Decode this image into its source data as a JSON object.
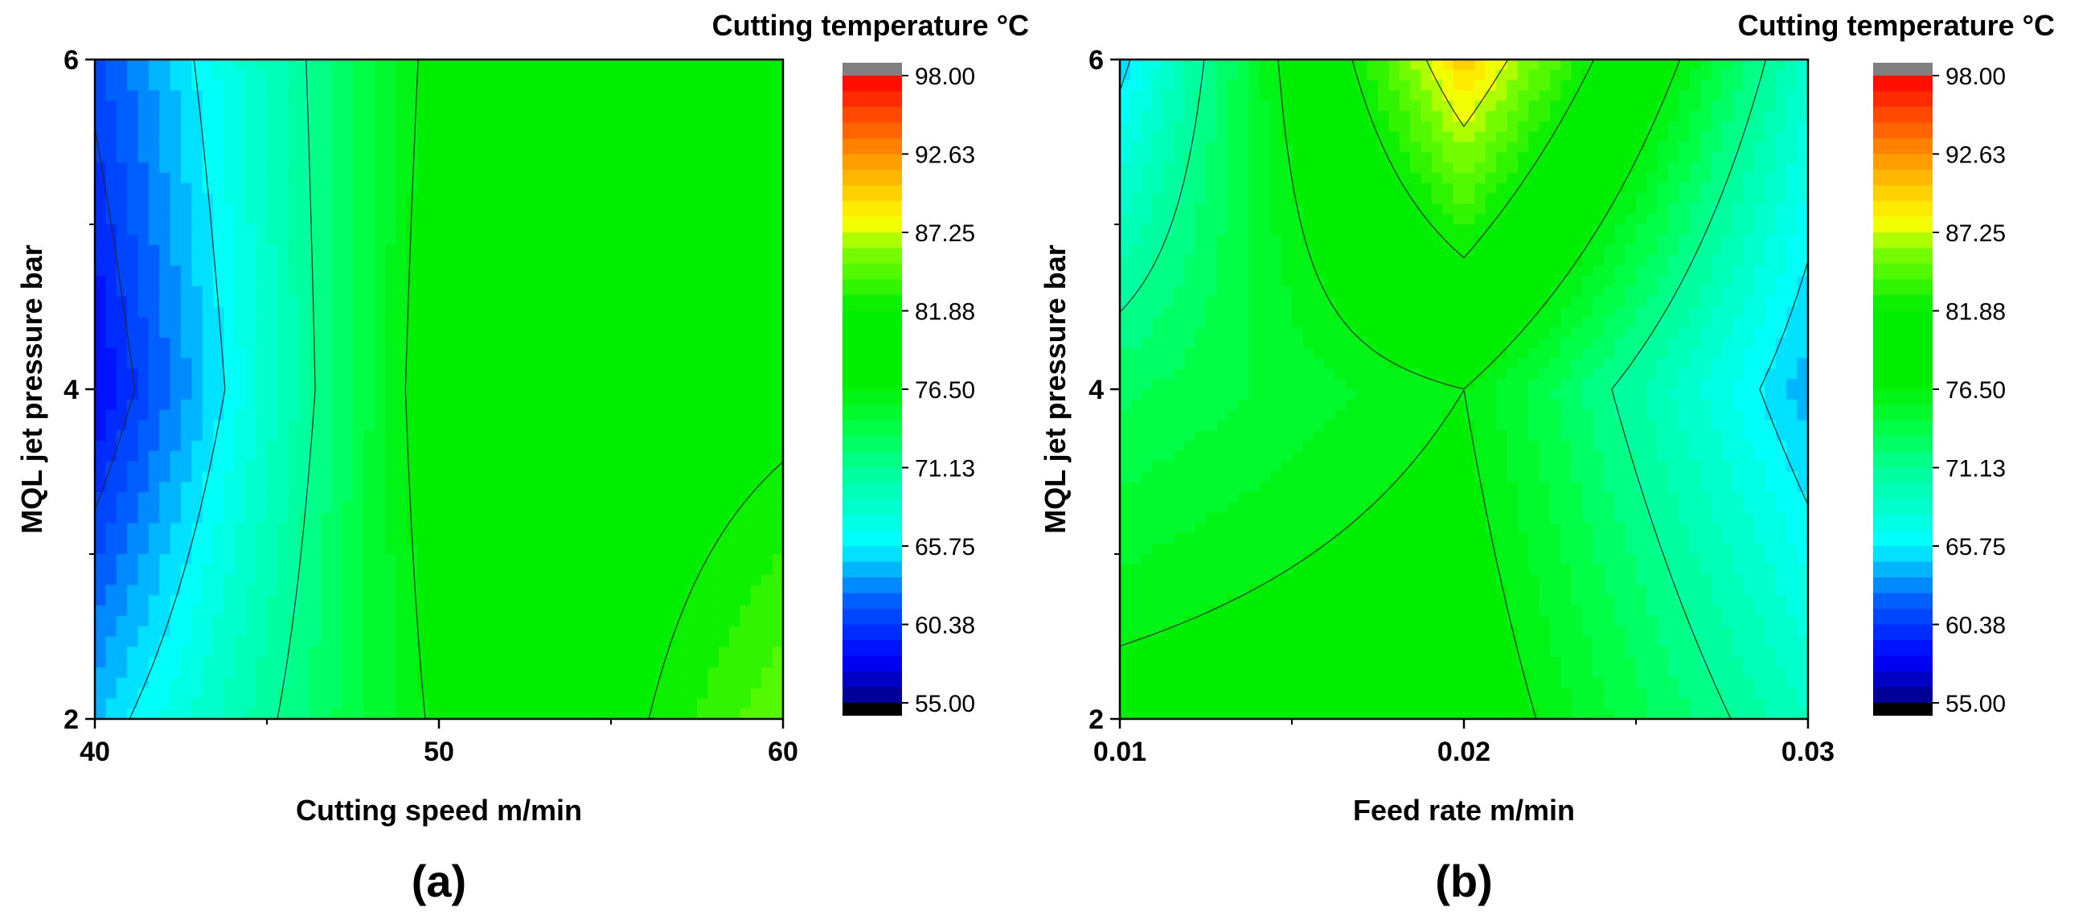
{
  "colors": {
    "stops": [
      [
        55,
        "#000080"
      ],
      [
        58,
        "#0000ff"
      ],
      [
        62,
        "#0060ff"
      ],
      [
        66,
        "#00ffff"
      ],
      [
        71,
        "#00ff99"
      ],
      [
        74,
        "#00ff40"
      ],
      [
        77,
        "#00ee00"
      ],
      [
        82,
        "#00ee00"
      ],
      [
        86,
        "#80ff00"
      ],
      [
        88,
        "#ffff00"
      ],
      [
        92,
        "#ffa000"
      ],
      [
        98,
        "#ff0000"
      ]
    ],
    "contour_line": "#2a2a2a"
  },
  "chart_data": [
    {
      "type": "heatmap",
      "panel_label": "(a)",
      "xlabel": "Cutting speed m/min",
      "ylabel": "MQL jet pressure bar",
      "x_ticks": [
        "40",
        "50",
        "60"
      ],
      "y_ticks": [
        "2",
        "4",
        "6"
      ],
      "xlim": [
        40,
        60
      ],
      "ylim": [
        2,
        6
      ],
      "x": [
        40,
        50,
        60
      ],
      "y": [
        2,
        4,
        6
      ],
      "z_approx": [
        [
          64.5,
          77.0,
          85.0
        ],
        [
          58.0,
          78.5,
          81.0
        ],
        [
          61.0,
          77.5,
          79.0
        ]
      ],
      "colorbar": {
        "title": "Cutting temperature °C",
        "min": 55.0,
        "max": 98.0,
        "ticks": [
          "98.00",
          "92.63",
          "87.25",
          "81.88",
          "76.50",
          "71.13",
          "65.75",
          "60.38",
          "55.00"
        ]
      }
    },
    {
      "type": "heatmap",
      "panel_label": "(b)",
      "xlabel": "Feed rate m/min",
      "ylabel": "MQL jet pressure bar",
      "x_ticks": [
        "0.01",
        "0.02",
        "0.03"
      ],
      "y_ticks": [
        "2",
        "4",
        "6"
      ],
      "xlim": [
        0.01,
        0.03
      ],
      "ylim": [
        2,
        6
      ],
      "x": [
        0.01,
        0.02,
        0.03
      ],
      "y": [
        2,
        4,
        6
      ],
      "z_approx": [
        [
          77.5,
          78.5,
          69.0
        ],
        [
          73.0,
          76.5,
          64.0
        ],
        [
          65.0,
          90.0,
          68.5
        ]
      ],
      "colorbar": {
        "title": "Cutting temperature °C",
        "min": 55.0,
        "max": 98.0,
        "ticks": [
          "98.00",
          "92.63",
          "87.25",
          "81.88",
          "76.50",
          "71.13",
          "65.75",
          "60.38",
          "55.00"
        ]
      }
    }
  ]
}
